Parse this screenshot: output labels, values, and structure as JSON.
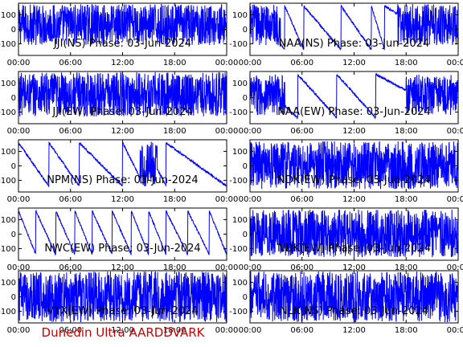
{
  "figure": {
    "footer": "Dunedin Ultra AARDDVARK",
    "footer_color": "#cc0000",
    "series_color": "#0000ff"
  },
  "chart_data": [
    {
      "type": "line",
      "title": "JJI(NS) Phase: 03-Jun-2024",
      "x_ticks": [
        "00:00",
        "06:00",
        "12:00",
        "18:00",
        "00:00"
      ],
      "y_ticks": [
        100,
        0,
        -100
      ],
      "ylim": [
        -180,
        180
      ],
      "xlim": [
        0,
        24
      ],
      "grid": false,
      "pattern": "dense",
      "noise": [
        "0-24"
      ],
      "band": [
        -110,
        175
      ]
    },
    {
      "type": "line",
      "title": "NAA(NS) Phase: 03-Jun-2024",
      "x_ticks": [
        "00:00",
        "06:00",
        "12:00",
        "18:00",
        "00:00"
      ],
      "y_ticks": [
        100,
        0,
        -100
      ],
      "ylim": [
        -180,
        180
      ],
      "xlim": [
        0,
        24
      ],
      "grid": false,
      "pattern": "wraps",
      "noise": [
        "0-3.5",
        "17-24"
      ],
      "band": [
        -110,
        175
      ],
      "wraps": [
        4,
        6.2,
        10.5,
        14,
        15.5
      ]
    },
    {
      "type": "line",
      "title": "JJI(EW) Phase: 03-Jun-2024",
      "x_ticks": [
        "00:00",
        "06:00",
        "12:00",
        "18:00",
        "00:00"
      ],
      "y_ticks": [
        100,
        0,
        -100
      ],
      "ylim": [
        -180,
        180
      ],
      "xlim": [
        0,
        24
      ],
      "grid": false,
      "pattern": "dense",
      "noise": [
        "0-24"
      ],
      "band": [
        -130,
        175
      ]
    },
    {
      "type": "line",
      "title": "NAA(EW) Phase: 03-Jun-2024",
      "x_ticks": [
        "00:00",
        "06:00",
        "12:00",
        "18:00",
        "00:00"
      ],
      "y_ticks": [
        100,
        0,
        -100
      ],
      "ylim": [
        -180,
        180
      ],
      "xlim": [
        0,
        24
      ],
      "grid": false,
      "pattern": "wraps",
      "noise": [
        "0-4",
        "18-24"
      ],
      "band": [
        -120,
        160
      ],
      "wraps": [
        5.5,
        10,
        14.5
      ]
    },
    {
      "type": "line",
      "title": "NPM(NS) Phase: 03-Jun-2024",
      "x_ticks": [
        "00:00",
        "06:00",
        "12:00",
        "18:00",
        "00:00"
      ],
      "y_ticks": [
        100,
        0,
        -100
      ],
      "ylim": [
        -180,
        180
      ],
      "xlim": [
        0,
        24
      ],
      "grid": false,
      "pattern": "wraps",
      "noise": [
        "14-16"
      ],
      "band": [
        -150,
        170
      ],
      "wraps": [
        3.5,
        7,
        12,
        14.5,
        17
      ]
    },
    {
      "type": "line",
      "title": "NDK(EW) Phase: 03-Jun-2024",
      "x_ticks": [
        "00:00",
        "06:00",
        "12:00",
        "18:00",
        "00:00"
      ],
      "y_ticks": [
        100,
        0,
        -100
      ],
      "ylim": [
        -180,
        180
      ],
      "xlim": [
        0,
        24
      ],
      "grid": false,
      "pattern": "dense",
      "noise": [
        "0-24"
      ],
      "band": [
        -160,
        170
      ]
    },
    {
      "type": "line",
      "title": "NWC(EW) Phase: 03-Jun-2024",
      "x_ticks": [
        "00:00",
        "06:00",
        "12:00",
        "18:00",
        "00:00"
      ],
      "y_ticks": [
        100,
        0,
        -100
      ],
      "ylim": [
        -180,
        180
      ],
      "xlim": [
        0,
        24
      ],
      "grid": false,
      "pattern": "wraps",
      "noise": [],
      "band": [
        -150,
        170
      ],
      "wraps": [
        2,
        4.3,
        6.5,
        8.5,
        10.8,
        13,
        15,
        17,
        19.5,
        22
      ]
    },
    {
      "type": "line",
      "title": "NDK(EW) Phase: 03-Jun-2024",
      "x_ticks": [
        "00:00",
        "06:00",
        "12:00",
        "18:00",
        "00:00"
      ],
      "y_ticks": [
        100,
        0,
        -100
      ],
      "ylim": [
        -180,
        180
      ],
      "xlim": [
        0,
        24
      ],
      "grid": false,
      "pattern": "dense",
      "noise": [
        "0-24"
      ],
      "band": [
        -160,
        170
      ]
    },
    {
      "type": "line",
      "title": "VTX(EW) Phase: 03-Jun-2024",
      "x_ticks": [
        "00:00",
        "06:00",
        "12:00",
        "18:00",
        "00:00"
      ],
      "y_ticks": [
        100,
        0,
        -100
      ],
      "ylim": [
        -180,
        180
      ],
      "xlim": [
        0,
        24
      ],
      "grid": false,
      "pattern": "dense",
      "noise": [
        "0-24"
      ],
      "band": [
        -175,
        175
      ]
    },
    {
      "type": "line",
      "title": "NLK(NS) Phase: 03-Jun-2024",
      "x_ticks": [
        "00:00",
        "06:00",
        "12:00",
        "18:00",
        "00:00"
      ],
      "y_ticks": [
        100,
        0,
        -100
      ],
      "ylim": [
        -180,
        180
      ],
      "xlim": [
        0,
        24
      ],
      "grid": false,
      "pattern": "dense",
      "noise": [
        "0-24"
      ],
      "band": [
        -175,
        175
      ]
    }
  ]
}
